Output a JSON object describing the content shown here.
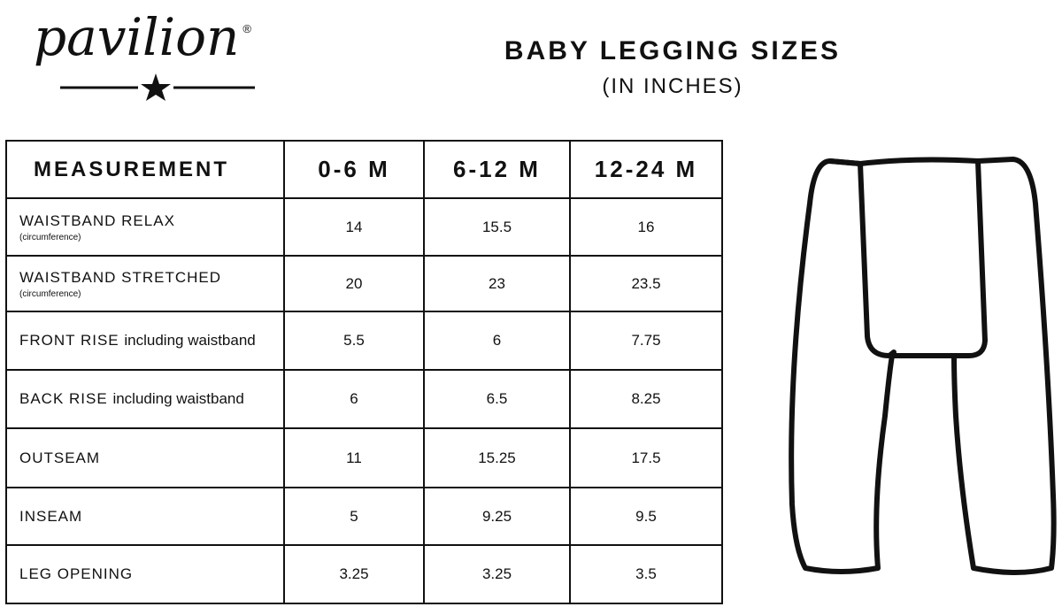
{
  "brand": {
    "logo_text": "pavilion",
    "registered": "®"
  },
  "header": {
    "title": "BABY LEGGING SIZES",
    "subtitle": "(IN INCHES)"
  },
  "table": {
    "columns": [
      "MEASUREMENT",
      "0-6 M",
      "6-12 M",
      "12-24 M"
    ],
    "rows": [
      {
        "label": "WAISTBAND RELAX",
        "note": "(circumference)",
        "values": [
          "14",
          "15.5",
          "16"
        ]
      },
      {
        "label": "WAISTBAND STRETCHED",
        "note": "(circumference)",
        "values": [
          "20",
          "23",
          "23.5"
        ]
      },
      {
        "label": "FRONT RISE",
        "note": "including waistband",
        "values": [
          "5.5",
          "6",
          "7.75"
        ]
      },
      {
        "label": "BACK RISE",
        "note": "including waistband",
        "values": [
          "6",
          "6.5",
          "8.25"
        ]
      },
      {
        "label": "OUTSEAM",
        "values": [
          "11",
          "15.25",
          "17.5"
        ]
      },
      {
        "label": "INSEAM",
        "values": [
          "5",
          "9.25",
          "9.5"
        ]
      },
      {
        "label": "LEG OPENING",
        "values": [
          "3.25",
          "3.25",
          "3.5"
        ]
      }
    ]
  },
  "illustration": {
    "icon": "leggings-outline-icon"
  }
}
